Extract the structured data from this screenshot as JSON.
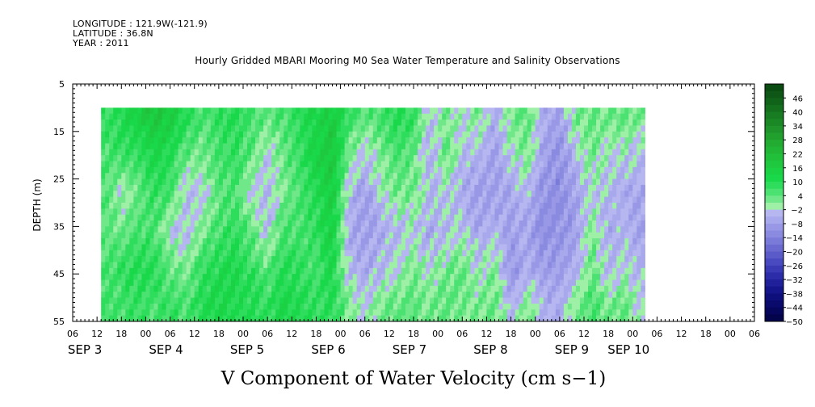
{
  "header": {
    "longitude": "LONGITUDE : 121.9W(-121.9)",
    "latitude": "LATITUDE : 36.8N",
    "year": "YEAR : 2011",
    "title": "Hourly Gridded MBARI Mooring M0 Sea Water Temperature and Salinity Observations"
  },
  "chart_data": {
    "type": "heatmap",
    "title": "Hourly Gridded MBARI Mooring M0 Sea Water Temperature and Salinity Observations",
    "variable_label": "V Component of Water Velocity (cm s−1)",
    "ylabel": "DEPTH (m)",
    "ylim": [
      5,
      55
    ],
    "y_inverted": true,
    "y_ticks": [
      "5",
      "15",
      "25",
      "35",
      "45",
      "55"
    ],
    "xlim_hours": [
      0,
      168
    ],
    "x_hour_ticks": [
      "06",
      "12",
      "18",
      "00",
      "06",
      "12",
      "18",
      "00",
      "06",
      "12",
      "18",
      "00",
      "06",
      "12",
      "18",
      "00",
      "06",
      "12",
      "18",
      "00",
      "06",
      "12",
      "18",
      "00",
      "06",
      "12",
      "18",
      "00",
      "06"
    ],
    "x_day_labels": [
      {
        "label": "SEP  3",
        "hour": 3
      },
      {
        "label": "SEP  4",
        "hour": 23
      },
      {
        "label": "SEP  5",
        "hour": 43
      },
      {
        "label": "SEP  6",
        "hour": 63
      },
      {
        "label": "SEP  7",
        "hour": 83
      },
      {
        "label": "SEP  8",
        "hour": 103
      },
      {
        "label": "SEP  9",
        "hour": 123
      },
      {
        "label": "SEP 10",
        "hour": 137
      }
    ],
    "data_depth_range": [
      10,
      55
    ],
    "data_time_range_hours": [
      7,
      141
    ],
    "colorbar_labels": [
      "46",
      "40",
      "34",
      "28",
      "22",
      "16",
      "10",
      "4",
      "−2",
      "−8",
      "−14",
      "−20",
      "−26",
      "−32",
      "−38",
      "−44",
      "−50"
    ],
    "colorbar_levels": [
      52,
      49,
      46,
      43,
      40,
      37,
      34,
      31,
      28,
      25,
      22,
      19,
      16,
      13,
      10,
      7,
      4,
      1,
      -2,
      -5,
      -8,
      -11,
      -14,
      -17,
      -20,
      -23,
      -26,
      -29,
      -32,
      -35,
      -38,
      -41,
      -44,
      -47,
      -50
    ],
    "colorbar_colors": [
      "#0a4b12",
      "#0e5716",
      "#11631a",
      "#15701e",
      "#187c22",
      "#1b8826",
      "#1e942a",
      "#21a02e",
      "#22ac32",
      "#22b636",
      "#21c03a",
      "#1fc93f",
      "#1ad244",
      "#19d84a",
      "#2edd5c",
      "#4be272",
      "#70e88a",
      "#9ef0a6",
      "#b6b6f0",
      "#a8a8ec",
      "#9898e6",
      "#8a8ae0",
      "#7a7ad8",
      "#6a6ad0",
      "#5a5ac8",
      "#4a4ac0",
      "#3a3ab4",
      "#2c2ca8",
      "#20209a",
      "#16168c",
      "#0f0f7c",
      "#0a0a6c",
      "#06065c",
      "#04044c"
    ],
    "v_samples_depths_m": [
      12,
      20,
      28,
      36,
      44,
      52
    ],
    "v_samples": [
      {
        "hour": 8,
        "values": [
          8,
          6,
          5,
          4,
          6,
          7
        ]
      },
      {
        "hour": 12,
        "values": [
          10,
          7,
          -2,
          3,
          8,
          6
        ]
      },
      {
        "hour": 16,
        "values": [
          14,
          8,
          3,
          6,
          10,
          8
        ]
      },
      {
        "hour": 20,
        "values": [
          18,
          12,
          8,
          6,
          10,
          6
        ]
      },
      {
        "hour": 24,
        "values": [
          16,
          10,
          6,
          -2,
          4,
          8
        ]
      },
      {
        "hour": 28,
        "values": [
          10,
          4,
          -4,
          -4,
          2,
          6
        ]
      },
      {
        "hour": 32,
        "values": [
          6,
          2,
          -3,
          2,
          8,
          10
        ]
      },
      {
        "hour": 36,
        "values": [
          8,
          6,
          4,
          6,
          10,
          12
        ]
      },
      {
        "hour": 40,
        "values": [
          10,
          8,
          6,
          8,
          12,
          10
        ]
      },
      {
        "hour": 44,
        "values": [
          6,
          4,
          -2,
          4,
          8,
          10
        ]
      },
      {
        "hour": 48,
        "values": [
          4,
          -3,
          -5,
          -3,
          4,
          8
        ]
      },
      {
        "hour": 52,
        "values": [
          6,
          4,
          2,
          6,
          10,
          12
        ]
      },
      {
        "hour": 56,
        "values": [
          10,
          8,
          6,
          6,
          8,
          10
        ]
      },
      {
        "hour": 60,
        "values": [
          12,
          14,
          10,
          8,
          6,
          8
        ]
      },
      {
        "hour": 64,
        "values": [
          16,
          18,
          16,
          14,
          12,
          10
        ]
      },
      {
        "hour": 68,
        "values": [
          8,
          2,
          -4,
          -6,
          -4,
          2
        ]
      },
      {
        "hour": 72,
        "values": [
          4,
          -4,
          -8,
          -8,
          -6,
          -2
        ]
      },
      {
        "hour": 76,
        "values": [
          6,
          2,
          -2,
          -6,
          -4,
          2
        ]
      },
      {
        "hour": 80,
        "values": [
          10,
          6,
          2,
          -4,
          -2,
          4
        ]
      },
      {
        "hour": 84,
        "values": [
          8,
          4,
          2,
          -2,
          2,
          4
        ]
      },
      {
        "hour": 88,
        "values": [
          -4,
          -6,
          -4,
          -6,
          -2,
          2
        ]
      },
      {
        "hour": 92,
        "values": [
          2,
          4,
          -2,
          -4,
          2,
          4
        ]
      },
      {
        "hour": 96,
        "values": [
          -2,
          -4,
          -6,
          -2,
          4,
          2
        ]
      },
      {
        "hour": 100,
        "values": [
          2,
          -4,
          -8,
          -6,
          -2,
          2
        ]
      },
      {
        "hour": 104,
        "values": [
          -6,
          -8,
          -8,
          -4,
          2,
          4
        ]
      },
      {
        "hour": 108,
        "values": [
          2,
          -2,
          -6,
          -8,
          -10,
          -4
        ]
      },
      {
        "hour": 112,
        "values": [
          4,
          2,
          -4,
          -6,
          -6,
          2
        ]
      },
      {
        "hour": 116,
        "values": [
          -6,
          -8,
          -10,
          -12,
          -8,
          -4
        ]
      },
      {
        "hour": 120,
        "values": [
          -8,
          -10,
          -12,
          -10,
          -8,
          -6
        ]
      },
      {
        "hour": 124,
        "values": [
          2,
          -4,
          -6,
          -8,
          -6,
          2
        ]
      },
      {
        "hour": 128,
        "values": [
          4,
          2,
          -2,
          2,
          4,
          6
        ]
      },
      {
        "hour": 132,
        "values": [
          2,
          -2,
          -4,
          -6,
          -4,
          2
        ]
      },
      {
        "hour": 136,
        "values": [
          4,
          -2,
          -6,
          -4,
          -2,
          4
        ]
      },
      {
        "hour": 140,
        "values": [
          2,
          -4,
          -6,
          -8,
          -4,
          -2
        ]
      }
    ]
  }
}
